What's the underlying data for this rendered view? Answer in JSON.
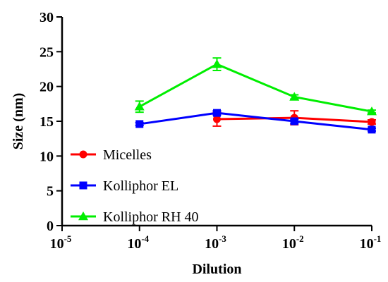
{
  "chart_data": {
    "type": "line",
    "xlabel": "Dilution",
    "ylabel": "Size (nm)",
    "xscale": "log",
    "xlim": [
      1e-05,
      0.1
    ],
    "ylim": [
      0,
      30
    ],
    "x_ticks": [
      {
        "base": "10",
        "exp": "-5"
      },
      {
        "base": "10",
        "exp": "-4"
      },
      {
        "base": "10",
        "exp": "-3"
      },
      {
        "base": "10",
        "exp": "-2"
      },
      {
        "base": "10",
        "exp": "-1"
      }
    ],
    "y_ticks": [
      "0",
      "5",
      "10",
      "15",
      "20",
      "25",
      "30"
    ],
    "legend_position": "bottom-left",
    "grid": false,
    "series": [
      {
        "name": "Micelles",
        "color": "#ff0000",
        "marker": "circle",
        "x": [
          0.001,
          0.01,
          0.1
        ],
        "y": [
          15.3,
          15.5,
          14.9
        ],
        "err": [
          1.0,
          1.0,
          0.3
        ]
      },
      {
        "name": "Kolliphor EL",
        "color": "#0000ff",
        "marker": "square",
        "x": [
          0.0001,
          0.001,
          0.01,
          0.1
        ],
        "y": [
          14.6,
          16.2,
          15.0,
          13.8
        ],
        "err": [
          0.2,
          0.3,
          0.3,
          0.2
        ]
      },
      {
        "name": "Kolliphor RH 40",
        "color": "#00ee00",
        "marker": "triangle",
        "x": [
          0.0001,
          0.001,
          0.01,
          0.1
        ],
        "y": [
          17.1,
          23.2,
          18.5,
          16.4
        ],
        "err": [
          0.8,
          0.9,
          0.3,
          0.2
        ]
      }
    ]
  }
}
